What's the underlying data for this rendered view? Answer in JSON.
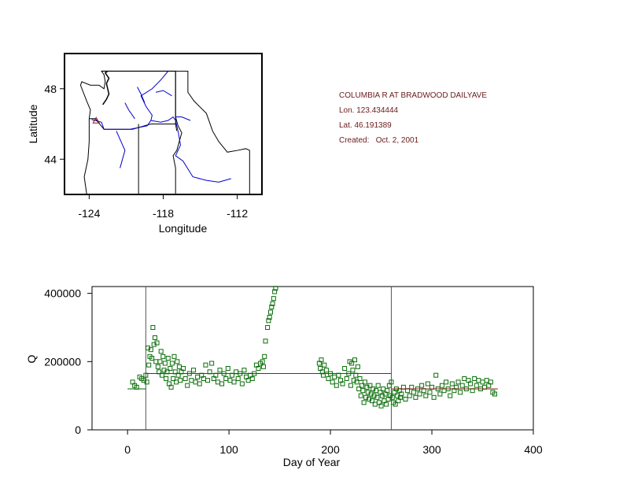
{
  "info": {
    "station": "COLUMBIA R AT BRADWOOD DAILYAVE",
    "lon": "Lon. 123.434444",
    "lat": "Lat. 46.191389",
    "created": "Created:   Oct. 2, 2001"
  },
  "colors": {
    "scatter": "#0a6e0a",
    "trend": "#8b1a1a",
    "state_border": "#000000",
    "river": "#0000cc",
    "vline": "#555555"
  },
  "chart_data": [
    {
      "type": "map",
      "xlabel": "Longitude",
      "ylabel": "Latitude",
      "xlim": [
        -126,
        -110
      ],
      "ylim": [
        42,
        50
      ],
      "xticks": [
        -124,
        -118,
        -112
      ],
      "yticks": [
        44,
        48
      ],
      "xtick_labels": [
        "-124",
        "-118",
        "-112"
      ],
      "ytick_labels": [
        "44",
        "48"
      ],
      "station_marker": {
        "lon": -123.434444,
        "lat": 46.191389,
        "shape": "triangle"
      },
      "borders": [
        [
          [
            -124.0,
            46.3
          ],
          [
            -123.9,
            46.8
          ],
          [
            -124.2,
            47.3
          ],
          [
            -124.7,
            48.2
          ],
          [
            -124.6,
            48.4
          ],
          [
            -123.9,
            48.2
          ],
          [
            -123.2,
            48.2
          ],
          [
            -122.8,
            48.0
          ],
          [
            -122.7,
            48.4
          ],
          [
            -122.8,
            48.8
          ],
          [
            -123.0,
            49.0
          ],
          [
            -117.0,
            49.0
          ],
          [
            -117.0,
            46.0
          ],
          [
            -116.9,
            45.6
          ]
        ],
        [
          [
            -123.0,
            49.0
          ],
          [
            -117.0,
            49.0
          ]
        ],
        [
          [
            -117.0,
            49.0
          ],
          [
            -117.0,
            46.4
          ],
          [
            -116.8,
            45.9
          ],
          [
            -116.5,
            45.5
          ],
          [
            -116.9,
            44.5
          ],
          [
            -117.2,
            44.2
          ],
          [
            -117.0,
            43.5
          ],
          [
            -117.0,
            42.0
          ]
        ],
        [
          [
            -124.2,
            42.0
          ],
          [
            -111.0,
            42.0
          ],
          [
            -111.0,
            44.5
          ],
          [
            -111.3,
            44.6
          ],
          [
            -112.0,
            44.5
          ],
          [
            -112.8,
            44.4
          ],
          [
            -113.5,
            45.0
          ],
          [
            -114.0,
            45.6
          ],
          [
            -114.5,
            46.6
          ],
          [
            -115.5,
            47.3
          ],
          [
            -116.0,
            47.8
          ],
          [
            -116.0,
            49.0
          ],
          [
            -117.0,
            49.0
          ]
        ],
        [
          [
            -124.0,
            46.3
          ],
          [
            -123.5,
            46.3
          ],
          [
            -122.8,
            45.7
          ],
          [
            -121.5,
            45.7
          ],
          [
            -120.5,
            45.7
          ],
          [
            -119.0,
            46.0
          ],
          [
            -117.0,
            46.0
          ]
        ],
        [
          [
            -120.0,
            42.0
          ],
          [
            -120.0,
            46.0
          ]
        ],
        [
          [
            -124.0,
            46.3
          ],
          [
            -124.0,
            45.0
          ],
          [
            -124.1,
            44.0
          ],
          [
            -124.4,
            43.0
          ],
          [
            -124.2,
            42.0
          ]
        ]
      ],
      "rivers": [
        [
          [
            -123.8,
            46.25
          ],
          [
            -123.0,
            46.1
          ],
          [
            -122.8,
            45.7
          ],
          [
            -121.8,
            45.7
          ],
          [
            -120.7,
            45.7
          ],
          [
            -119.3,
            45.9
          ],
          [
            -119.0,
            46.2
          ],
          [
            -118.9,
            46.5
          ],
          [
            -119.4,
            47.0
          ],
          [
            -119.8,
            47.6
          ],
          [
            -118.9,
            48.0
          ],
          [
            -118.2,
            48.5
          ],
          [
            -117.6,
            49.0
          ]
        ],
        [
          [
            -119.0,
            46.2
          ],
          [
            -118.2,
            46.1
          ],
          [
            -117.6,
            46.2
          ],
          [
            -117.2,
            46.4
          ],
          [
            -117.0,
            46.2
          ],
          [
            -116.8,
            45.6
          ],
          [
            -116.6,
            44.8
          ],
          [
            -117.0,
            44.2
          ],
          [
            -116.4,
            43.9
          ],
          [
            -115.6,
            43.0
          ],
          [
            -114.5,
            42.8
          ],
          [
            -113.5,
            42.7
          ],
          [
            -112.5,
            42.9
          ]
        ],
        [
          [
            -117.0,
            46.4
          ],
          [
            -116.5,
            46.4
          ],
          [
            -115.8,
            46.2
          ]
        ],
        [
          [
            -120.3,
            46.3
          ],
          [
            -120.8,
            46.8
          ],
          [
            -121.1,
            47.2
          ]
        ],
        [
          [
            -121.8,
            45.6
          ],
          [
            -121.1,
            44.5
          ],
          [
            -121.5,
            43.5
          ]
        ],
        [
          [
            -117.3,
            47.6
          ],
          [
            -118.0,
            47.9
          ],
          [
            -118.6,
            47.8
          ]
        ],
        [
          [
            -119.5,
            47.2
          ],
          [
            -119.8,
            47.7
          ],
          [
            -120.1,
            48.1
          ]
        ]
      ],
      "puget_sound": [
        [
          -122.9,
          47.1
        ],
        [
          -122.6,
          47.4
        ],
        [
          -122.4,
          47.7
        ],
        [
          -122.5,
          48.0
        ],
        [
          -122.6,
          48.3
        ],
        [
          -122.4,
          48.6
        ],
        [
          -122.7,
          48.9
        ],
        [
          -122.5,
          49.0
        ]
      ]
    },
    {
      "type": "scatter",
      "xlabel": "Day of Year",
      "ylabel": "Q",
      "xlim": [
        -35,
        400
      ],
      "ylim": [
        0,
        420000
      ],
      "xticks": [
        0,
        100,
        200,
        300,
        400
      ],
      "yticks": [
        0,
        200000,
        400000
      ],
      "xtick_labels": [
        "0",
        "100",
        "200",
        "300",
        "400"
      ],
      "ytick_labels": [
        "0",
        "200000",
        "400000"
      ],
      "vertical_lines": [
        18,
        260
      ],
      "trend_segments": [
        {
          "x": [
            0,
            18
          ],
          "y": [
            120000,
            120000
          ]
        },
        {
          "x": [
            18,
            260
          ],
          "y": [
            165000,
            165000
          ]
        },
        {
          "x": [
            260,
            365
          ],
          "y": [
            120000,
            120000
          ]
        }
      ],
      "points": [
        [
          5,
          140000
        ],
        [
          7,
          130000
        ],
        [
          9,
          125000
        ],
        [
          12,
          155000
        ],
        [
          14,
          150000
        ],
        [
          16,
          145000
        ],
        [
          18,
          160000
        ],
        [
          19,
          140000
        ],
        [
          20,
          240000
        ],
        [
          21,
          190000
        ],
        [
          22,
          215000
        ],
        [
          23,
          235000
        ],
        [
          24,
          210000
        ],
        [
          25,
          300000
        ],
        [
          26,
          250000
        ],
        [
          27,
          270000
        ],
        [
          28,
          200000
        ],
        [
          29,
          255000
        ],
        [
          30,
          185000
        ],
        [
          31,
          170000
        ],
        [
          32,
          200000
        ],
        [
          33,
          230000
        ],
        [
          34,
          160000
        ],
        [
          35,
          215000
        ],
        [
          36,
          175000
        ],
        [
          37,
          195000
        ],
        [
          38,
          150000
        ],
        [
          39,
          170000
        ],
        [
          40,
          210000
        ],
        [
          41,
          135000
        ],
        [
          42,
          180000
        ],
        [
          43,
          125000
        ],
        [
          44,
          195000
        ],
        [
          45,
          150000
        ],
        [
          46,
          215000
        ],
        [
          47,
          170000
        ],
        [
          48,
          140000
        ],
        [
          49,
          200000
        ],
        [
          50,
          160000
        ],
        [
          51,
          185000
        ],
        [
          52,
          145000
        ],
        [
          53,
          170000
        ],
        [
          55,
          180000
        ],
        [
          57,
          150000
        ],
        [
          59,
          130000
        ],
        [
          61,
          165000
        ],
        [
          63,
          145000
        ],
        [
          65,
          175000
        ],
        [
          67,
          140000
        ],
        [
          69,
          155000
        ],
        [
          71,
          135000
        ],
        [
          73,
          160000
        ],
        [
          75,
          150000
        ],
        [
          77,
          190000
        ],
        [
          79,
          145000
        ],
        [
          81,
          170000
        ],
        [
          83,
          195000
        ],
        [
          85,
          150000
        ],
        [
          87,
          160000
        ],
        [
          89,
          140000
        ],
        [
          91,
          175000
        ],
        [
          93,
          135000
        ],
        [
          95,
          165000
        ],
        [
          97,
          150000
        ],
        [
          99,
          180000
        ],
        [
          101,
          145000
        ],
        [
          103,
          160000
        ],
        [
          105,
          140000
        ],
        [
          107,
          170000
        ],
        [
          109,
          150000
        ],
        [
          111,
          165000
        ],
        [
          113,
          135000
        ],
        [
          115,
          175000
        ],
        [
          117,
          155000
        ],
        [
          119,
          145000
        ],
        [
          121,
          160000
        ],
        [
          123,
          150000
        ],
        [
          125,
          165000
        ],
        [
          127,
          190000
        ],
        [
          129,
          180000
        ],
        [
          131,
          195000
        ],
        [
          133,
          200000
        ],
        [
          134,
          185000
        ],
        [
          135,
          215000
        ],
        [
          136,
          260000
        ],
        [
          138,
          300000
        ],
        [
          139,
          320000
        ],
        [
          140,
          330000
        ],
        [
          141,
          345000
        ],
        [
          142,
          360000
        ],
        [
          143,
          370000
        ],
        [
          144,
          385000
        ],
        [
          145,
          405000
        ],
        [
          146,
          415000
        ],
        [
          189,
          195000
        ],
        [
          190,
          180000
        ],
        [
          191,
          205000
        ],
        [
          192,
          170000
        ],
        [
          193,
          160000
        ],
        [
          194,
          190000
        ],
        [
          196,
          175000
        ],
        [
          198,
          150000
        ],
        [
          200,
          165000
        ],
        [
          202,
          140000
        ],
        [
          204,
          155000
        ],
        [
          206,
          130000
        ],
        [
          208,
          160000
        ],
        [
          210,
          145000
        ],
        [
          212,
          135000
        ],
        [
          214,
          180000
        ],
        [
          216,
          150000
        ],
        [
          218,
          165000
        ],
        [
          219,
          200000
        ],
        [
          220,
          130000
        ],
        [
          221,
          195000
        ],
        [
          222,
          175000
        ],
        [
          223,
          145000
        ],
        [
          224,
          205000
        ],
        [
          225,
          160000
        ],
        [
          226,
          140000
        ],
        [
          227,
          185000
        ],
        [
          228,
          120000
        ],
        [
          229,
          150000
        ],
        [
          230,
          100000
        ],
        [
          231,
          130000
        ],
        [
          232,
          115000
        ],
        [
          233,
          80000
        ],
        [
          234,
          140000
        ],
        [
          235,
          95000
        ],
        [
          236,
          125000
        ],
        [
          237,
          110000
        ],
        [
          238,
          90000
        ],
        [
          239,
          130000
        ],
        [
          240,
          105000
        ],
        [
          241,
          85000
        ],
        [
          242,
          120000
        ],
        [
          243,
          100000
        ],
        [
          244,
          75000
        ],
        [
          245,
          115000
        ],
        [
          246,
          95000
        ],
        [
          247,
          130000
        ],
        [
          248,
          80000
        ],
        [
          249,
          110000
        ],
        [
          250,
          70000
        ],
        [
          251,
          100000
        ],
        [
          252,
          120000
        ],
        [
          253,
          85000
        ],
        [
          254,
          105000
        ],
        [
          255,
          75000
        ],
        [
          256,
          115000
        ],
        [
          257,
          90000
        ],
        [
          258,
          130000
        ],
        [
          259,
          100000
        ],
        [
          260,
          140000
        ],
        [
          261,
          95000
        ],
        [
          262,
          80000
        ],
        [
          263,
          110000
        ],
        [
          264,
          75000
        ],
        [
          265,
          120000
        ],
        [
          266,
          100000
        ],
        [
          267,
          85000
        ],
        [
          268,
          115000
        ],
        [
          269,
          95000
        ],
        [
          270,
          105000
        ],
        [
          272,
          125000
        ],
        [
          274,
          90000
        ],
        [
          276,
          115000
        ],
        [
          278,
          100000
        ],
        [
          280,
          125000
        ],
        [
          282,
          110000
        ],
        [
          284,
          95000
        ],
        [
          286,
          120000
        ],
        [
          288,
          105000
        ],
        [
          290,
          130000
        ],
        [
          292,
          115000
        ],
        [
          294,
          100000
        ],
        [
          296,
          135000
        ],
        [
          298,
          110000
        ],
        [
          300,
          125000
        ],
        [
          302,
          95000
        ],
        [
          304,
          160000
        ],
        [
          306,
          120000
        ],
        [
          308,
          105000
        ],
        [
          310,
          130000
        ],
        [
          312,
          115000
        ],
        [
          314,
          140000
        ],
        [
          316,
          120000
        ],
        [
          318,
          100000
        ],
        [
          320,
          135000
        ],
        [
          322,
          115000
        ],
        [
          324,
          125000
        ],
        [
          326,
          140000
        ],
        [
          328,
          110000
        ],
        [
          330,
          130000
        ],
        [
          332,
          150000
        ],
        [
          334,
          120000
        ],
        [
          336,
          145000
        ],
        [
          338,
          135000
        ],
        [
          340,
          115000
        ],
        [
          342,
          150000
        ],
        [
          344,
          130000
        ],
        [
          346,
          145000
        ],
        [
          348,
          120000
        ],
        [
          350,
          140000
        ],
        [
          352,
          125000
        ],
        [
          354,
          145000
        ],
        [
          356,
          130000
        ],
        [
          358,
          140000
        ],
        [
          360,
          110000
        ],
        [
          362,
          105000
        ]
      ]
    }
  ]
}
